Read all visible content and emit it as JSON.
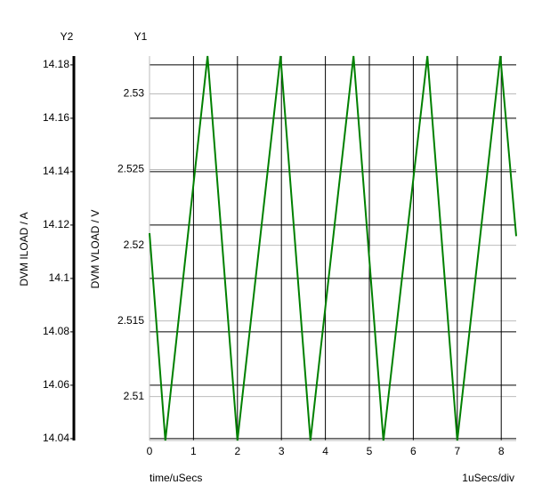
{
  "chart_data": {
    "type": "line",
    "y2_name": "Y2",
    "y1_name": "Y1",
    "y2_label": "DVM ILOAD / A",
    "y_label": "DVM VLOAD / V",
    "x_label": "time/uSecs",
    "scale_label": "1uSecs/div",
    "x": [
      0,
      0.36,
      1.32,
      2.0,
      2.98,
      3.66,
      4.64,
      5.32,
      6.32,
      7.0,
      7.98,
      8.34
    ],
    "values": [
      2.5208,
      2.5071,
      2.5325,
      2.5071,
      2.5325,
      2.5071,
      2.5325,
      2.5071,
      2.5325,
      2.5071,
      2.5325,
      2.5206
    ],
    "color": "#008000",
    "xlim": [
      0,
      8.34
    ],
    "xticks": [
      0,
      1,
      2,
      3,
      4,
      5,
      6,
      7,
      8
    ],
    "ylim": [
      2.5071,
      2.5325
    ],
    "yticks": [
      2.51,
      2.515,
      2.52,
      2.525,
      2.53
    ],
    "y2lim": [
      14.0393,
      14.1833
    ],
    "y2ticks": [
      14.04,
      14.06,
      14.08,
      14.1,
      14.12,
      14.14,
      14.16,
      14.18
    ],
    "grid": true
  }
}
